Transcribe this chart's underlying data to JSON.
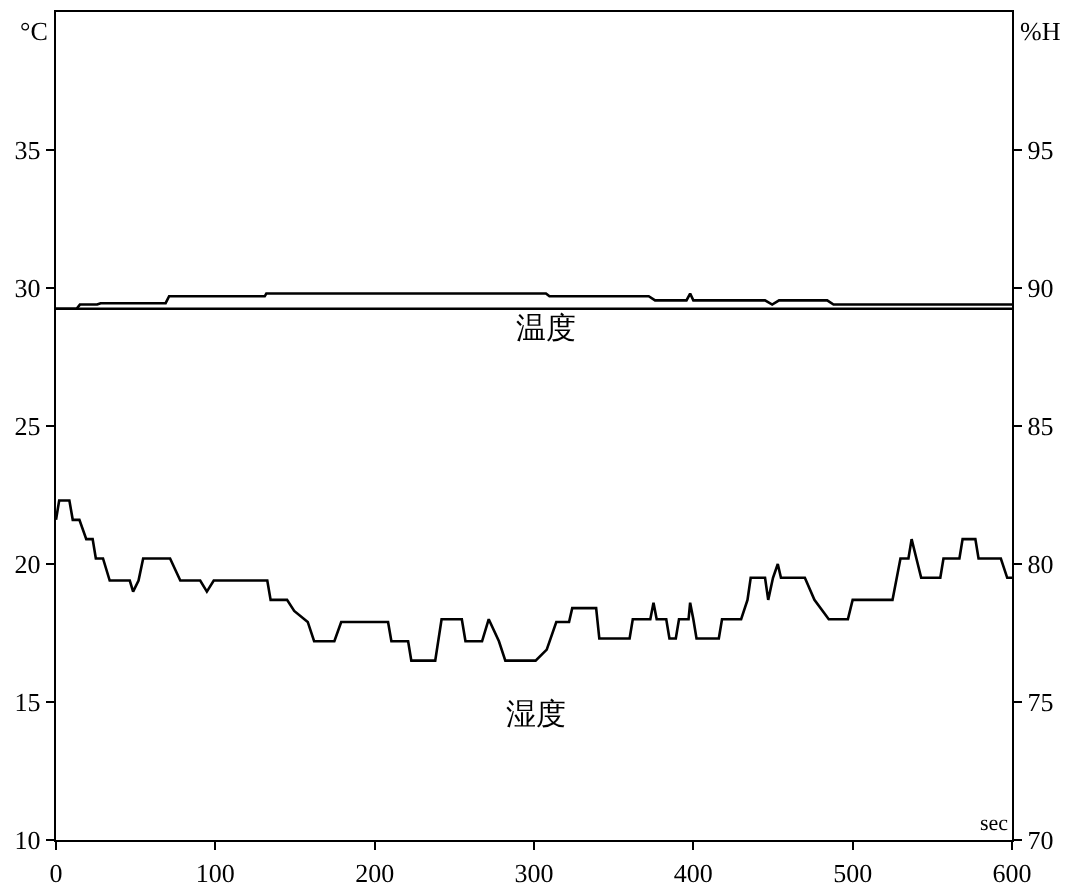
{
  "chart_data": {
    "type": "line",
    "xlabel": "sec",
    "ylabel": "°C",
    "y2label": "%H",
    "xlim": [
      0,
      600
    ],
    "xticks": [
      0,
      100,
      200,
      300,
      400,
      500,
      600
    ],
    "ylim": [
      10,
      40
    ],
    "yticks": [
      10,
      15,
      20,
      25,
      30,
      35
    ],
    "y2lim": [
      70,
      100
    ],
    "y2ticks": [
      70,
      75,
      80,
      85,
      90,
      95
    ],
    "grid": false,
    "legend": false,
    "marker": "none",
    "line_style": "solid",
    "ref_lines": [
      {
        "axis": "y",
        "value": 29.25,
        "color": "#000000"
      }
    ],
    "series": [
      {
        "name": "温度",
        "color": "#000000",
        "x": [
          0,
          12.9,
          15,
          25.8,
          28,
          68.8,
          71,
          131,
          132,
          307.5,
          309.7,
          372,
          376,
          395.7,
          398,
          400,
          445,
          449.5,
          453.8,
          484,
          488,
          600
        ],
        "values": [
          29.25,
          29.25,
          29.4,
          29.4,
          29.45,
          29.45,
          29.7,
          29.7,
          29.8,
          29.8,
          29.7,
          29.7,
          29.55,
          29.55,
          29.8,
          29.55,
          29.55,
          29.4,
          29.55,
          29.55,
          29.4,
          29.4
        ]
      },
      {
        "name": "湿度",
        "color": "#000000",
        "axis": "y2",
        "x": [
          0,
          2,
          8.4,
          10.5,
          14.7,
          19,
          23,
          25,
          29.5,
          33.7,
          46.3,
          48.4,
          51.8,
          54.7,
          65,
          71.6,
          78,
          90.5,
          94.7,
          99,
          132.6,
          134.7,
          145,
          149.5,
          158,
          162,
          174.7,
          179,
          208.4,
          210.5,
          221,
          223,
          238,
          242,
          254.7,
          257,
          267.4,
          271.6,
          278,
          282,
          301,
          308,
          314,
          322,
          324,
          339,
          341,
          360,
          362,
          373,
          375,
          377,
          383,
          385,
          389,
          391,
          397,
          398,
          400,
          402,
          416,
          418,
          430,
          434,
          436,
          445,
          447,
          450,
          453,
          455,
          470,
          476,
          485,
          497,
          500,
          525,
          530,
          535,
          537,
          540,
          543,
          555,
          557,
          567,
          569,
          577,
          579,
          593,
          597,
          600
        ],
        "values": [
          81.6,
          82.3,
          82.3,
          81.6,
          81.6,
          80.9,
          80.9,
          80.2,
          80.2,
          79.4,
          79.4,
          79.0,
          79.4,
          80.2,
          80.2,
          80.2,
          79.4,
          79.4,
          79.0,
          79.4,
          79.4,
          78.7,
          78.7,
          78.3,
          77.9,
          77.2,
          77.2,
          77.9,
          77.9,
          77.2,
          77.2,
          76.5,
          76.5,
          78.0,
          78.0,
          77.2,
          77.2,
          78.0,
          77.2,
          76.5,
          76.5,
          76.9,
          77.9,
          77.9,
          78.4,
          78.4,
          77.3,
          77.3,
          78.0,
          78.0,
          78.6,
          78.0,
          78.0,
          77.3,
          77.3,
          78.0,
          78.0,
          78.6,
          78.0,
          77.3,
          77.3,
          78.0,
          78.0,
          78.7,
          79.5,
          79.5,
          78.7,
          79.5,
          80.0,
          79.5,
          79.5,
          78.7,
          78.0,
          78.0,
          78.7,
          78.7,
          80.2,
          80.2,
          80.9,
          80.2,
          79.5,
          79.5,
          80.2,
          80.2,
          80.9,
          80.9,
          80.2,
          80.2,
          79.5,
          79.5
        ]
      }
    ]
  }
}
